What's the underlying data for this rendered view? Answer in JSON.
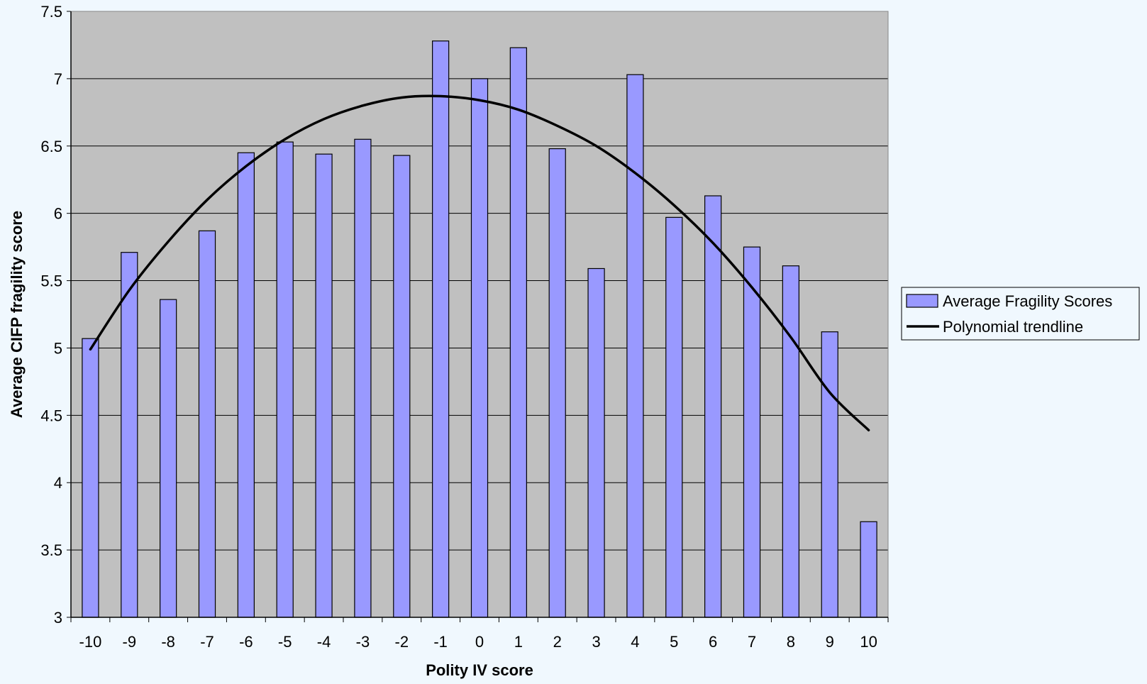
{
  "chart_data": {
    "type": "bar",
    "title": "",
    "xlabel": "Polity IV score",
    "ylabel": "Average CIFP fragility score",
    "categories": [
      "-10",
      "-9",
      "-8",
      "-7",
      "-6",
      "-5",
      "-4",
      "-3",
      "-2",
      "-1",
      "0",
      "1",
      "2",
      "3",
      "4",
      "5",
      "6",
      "7",
      "8",
      "9",
      "10"
    ],
    "series": [
      {
        "name": "Average Fragility Scores",
        "type": "bar",
        "color": "#9999ff",
        "values": [
          5.07,
          5.71,
          5.36,
          5.87,
          6.45,
          6.53,
          6.44,
          6.55,
          6.43,
          7.28,
          7.0,
          7.23,
          6.48,
          5.59,
          7.03,
          5.97,
          6.13,
          5.75,
          5.61,
          5.12,
          3.71
        ]
      },
      {
        "name": "Polynomial trendline",
        "type": "line",
        "color": "#000000",
        "values": [
          4.99,
          5.43,
          5.79,
          6.1,
          6.35,
          6.55,
          6.7,
          6.8,
          6.86,
          6.87,
          6.84,
          6.77,
          6.65,
          6.5,
          6.3,
          6.06,
          5.78,
          5.45,
          5.08,
          4.67,
          4.39
        ]
      }
    ],
    "yticks": [
      "3",
      "3.5",
      "4",
      "4.5",
      "5",
      "5.5",
      "6",
      "6.5",
      "7",
      "7.5"
    ],
    "ylim": [
      3,
      7.5
    ],
    "grid": true,
    "legend_position": "right",
    "colors": {
      "page_background": "#f0f8fe",
      "plot_background": "#c0c0c0",
      "gridline": "#000000",
      "bar_fill": "#9999ff",
      "bar_stroke": "#000000",
      "trendline": "#000000"
    }
  }
}
